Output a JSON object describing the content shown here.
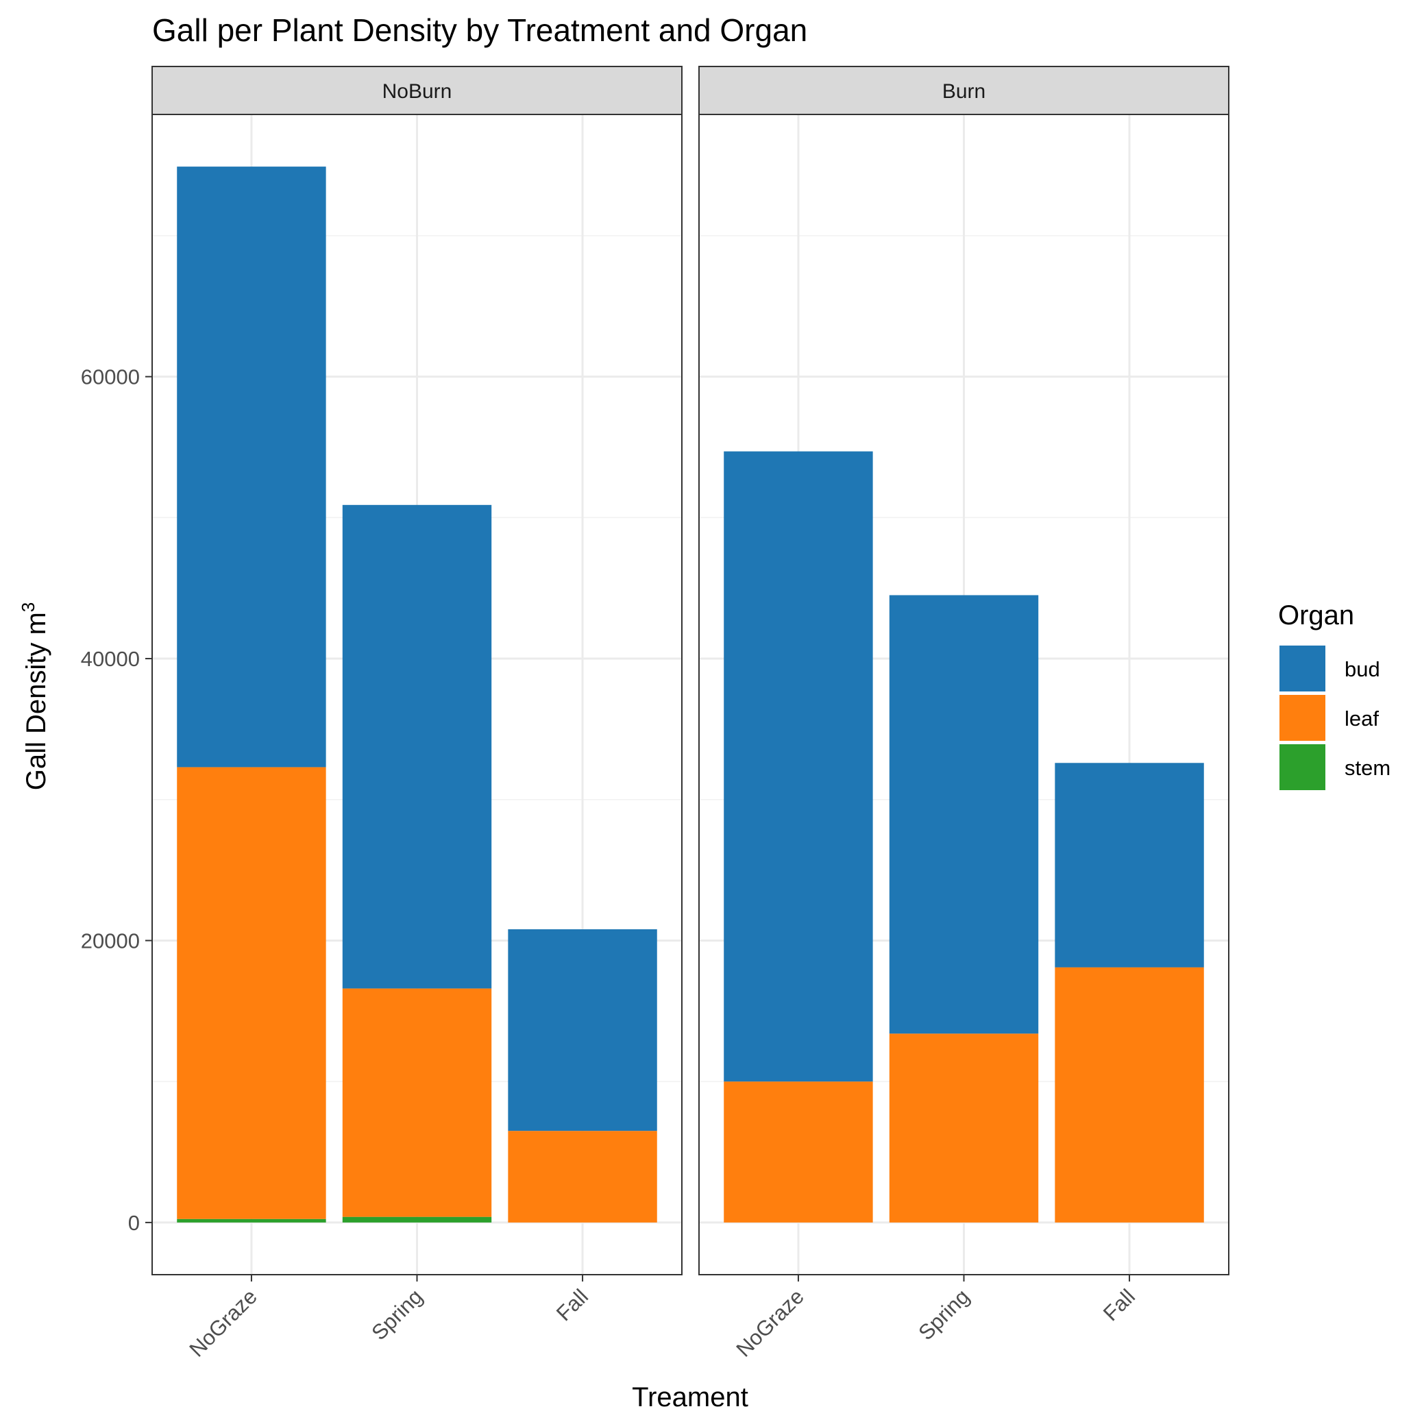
{
  "chart_data": {
    "type": "bar",
    "stacked": true,
    "title": "Gall per Plant Density by Treatment and Organ",
    "xlabel": "Treament",
    "ylabel": "Gall Density m",
    "ylabel_superscript": "3",
    "facets": [
      "NoBurn",
      "Burn"
    ],
    "categories": [
      "NoGraze",
      "Spring",
      "Fall"
    ],
    "yticks": [
      0,
      20000,
      40000,
      60000
    ],
    "ylim": [
      -3700,
      78600
    ],
    "legend": {
      "title": "Organ",
      "position": "right",
      "entries": [
        "bud",
        "leaf",
        "stem"
      ]
    },
    "colors": {
      "bud": "#1f77b4",
      "leaf": "#ff7f0e",
      "stem": "#2ca02c"
    },
    "panels": [
      {
        "facet": "NoBurn",
        "series": [
          {
            "name": "stem",
            "values": [
              250,
              400,
              0
            ]
          },
          {
            "name": "leaf",
            "values": [
              32050,
              16200,
              6500
            ]
          },
          {
            "name": "bud",
            "values": [
              42600,
              34300,
              14300
            ]
          }
        ]
      },
      {
        "facet": "Burn",
        "series": [
          {
            "name": "stem",
            "values": [
              0,
              0,
              0
            ]
          },
          {
            "name": "leaf",
            "values": [
              10000,
              13400,
              18100
            ]
          },
          {
            "name": "bud",
            "values": [
              44700,
              31100,
              14500
            ]
          }
        ]
      }
    ]
  }
}
